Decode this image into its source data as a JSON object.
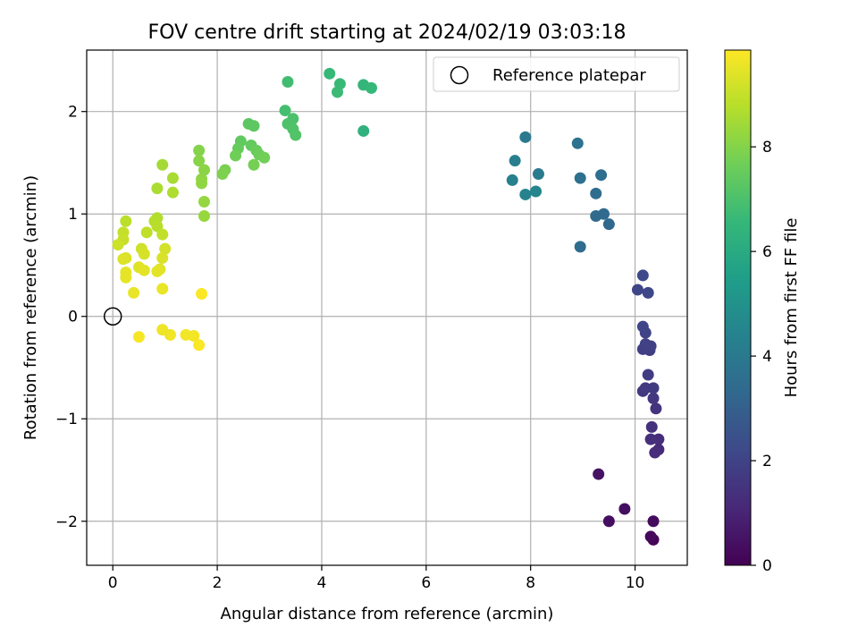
{
  "chart_data": {
    "type": "scatter",
    "title": "FOV centre drift starting at 2024/02/19 03:03:18",
    "xlabel": "Angular distance from reference (arcmin)",
    "ylabel": "Rotation from reference (arcmin)",
    "xlim": [
      -0.5,
      11.0
    ],
    "ylim": [
      -2.43,
      2.6
    ],
    "xticks": [
      0,
      2,
      4,
      6,
      8,
      10
    ],
    "yticks": [
      -2,
      -1,
      0,
      1,
      2
    ],
    "xtick_labels": [
      "0",
      "2",
      "4",
      "6",
      "8",
      "10"
    ],
    "ytick_labels": [
      "−2",
      "−1",
      "0",
      "1",
      "2"
    ],
    "grid": true,
    "legend": {
      "position": "top-right",
      "entries": [
        "Reference platepar"
      ]
    },
    "reference_point": {
      "x": 0,
      "y": 0,
      "label": "Reference platepar"
    },
    "colorbar": {
      "label": "Hours from first FF file",
      "min": 0,
      "max": 9.85,
      "ticks": [
        0,
        2,
        4,
        6,
        8
      ],
      "tick_labels": [
        "0",
        "2",
        "4",
        "6",
        "8"
      ],
      "colormap": [
        "#440154",
        "#482878",
        "#3e4989",
        "#31688e",
        "#26828e",
        "#1f9e89",
        "#35b779",
        "#6ece58",
        "#b5de2b",
        "#fde725"
      ]
    },
    "points": [
      {
        "x": 10.35,
        "y": -2.18,
        "h": 0.1
      },
      {
        "x": 10.3,
        "y": -2.15,
        "h": 0.2
      },
      {
        "x": 10.35,
        "y": -2.0,
        "h": 0.3
      },
      {
        "x": 9.5,
        "y": -2.0,
        "h": 0.35
      },
      {
        "x": 9.8,
        "y": -1.88,
        "h": 0.4
      },
      {
        "x": 9.3,
        "y": -1.54,
        "h": 0.5
      },
      {
        "x": 10.45,
        "y": -1.3,
        "h": 1.2
      },
      {
        "x": 10.38,
        "y": -1.33,
        "h": 1.25
      },
      {
        "x": 10.45,
        "y": -1.2,
        "h": 1.3
      },
      {
        "x": 10.3,
        "y": -1.2,
        "h": 1.35
      },
      {
        "x": 10.32,
        "y": -1.08,
        "h": 1.4
      },
      {
        "x": 10.4,
        "y": -0.9,
        "h": 1.5
      },
      {
        "x": 10.35,
        "y": -0.8,
        "h": 1.55
      },
      {
        "x": 10.15,
        "y": -0.73,
        "h": 1.6
      },
      {
        "x": 10.2,
        "y": -0.7,
        "h": 1.65
      },
      {
        "x": 10.35,
        "y": -0.7,
        "h": 1.7
      },
      {
        "x": 10.25,
        "y": -0.57,
        "h": 1.75
      },
      {
        "x": 10.28,
        "y": -0.33,
        "h": 1.8
      },
      {
        "x": 10.15,
        "y": -0.32,
        "h": 1.85
      },
      {
        "x": 10.3,
        "y": -0.29,
        "h": 1.9
      },
      {
        "x": 10.2,
        "y": -0.27,
        "h": 1.95
      },
      {
        "x": 10.2,
        "y": -0.16,
        "h": 2.0
      },
      {
        "x": 10.15,
        "y": -0.1,
        "h": 2.05
      },
      {
        "x": 10.05,
        "y": 0.26,
        "h": 2.1
      },
      {
        "x": 10.25,
        "y": 0.23,
        "h": 2.15
      },
      {
        "x": 10.15,
        "y": 0.4,
        "h": 2.2
      },
      {
        "x": 9.5,
        "y": 0.9,
        "h": 3.3
      },
      {
        "x": 9.4,
        "y": 1.0,
        "h": 3.35
      },
      {
        "x": 9.25,
        "y": 0.98,
        "h": 3.4
      },
      {
        "x": 8.95,
        "y": 0.68,
        "h": 3.45
      },
      {
        "x": 9.25,
        "y": 1.2,
        "h": 3.5
      },
      {
        "x": 9.35,
        "y": 1.38,
        "h": 3.55
      },
      {
        "x": 8.95,
        "y": 1.35,
        "h": 3.6
      },
      {
        "x": 8.9,
        "y": 1.69,
        "h": 3.7
      },
      {
        "x": 7.9,
        "y": 1.75,
        "h": 4.0
      },
      {
        "x": 8.15,
        "y": 1.39,
        "h": 4.1
      },
      {
        "x": 7.7,
        "y": 1.52,
        "h": 4.2
      },
      {
        "x": 7.65,
        "y": 1.33,
        "h": 4.3
      },
      {
        "x": 7.9,
        "y": 1.19,
        "h": 4.4
      },
      {
        "x": 8.1,
        "y": 1.22,
        "h": 4.5
      },
      {
        "x": 4.8,
        "y": 1.81,
        "h": 6.3
      },
      {
        "x": 4.8,
        "y": 2.26,
        "h": 6.5
      },
      {
        "x": 4.95,
        "y": 2.23,
        "h": 6.55
      },
      {
        "x": 4.15,
        "y": 2.37,
        "h": 6.6
      },
      {
        "x": 4.35,
        "y": 2.27,
        "h": 6.65
      },
      {
        "x": 4.3,
        "y": 2.19,
        "h": 6.7
      },
      {
        "x": 3.35,
        "y": 2.29,
        "h": 6.8
      },
      {
        "x": 3.3,
        "y": 2.01,
        "h": 6.9
      },
      {
        "x": 3.45,
        "y": 1.93,
        "h": 7.0
      },
      {
        "x": 3.35,
        "y": 1.88,
        "h": 7.05
      },
      {
        "x": 3.45,
        "y": 1.83,
        "h": 7.1
      },
      {
        "x": 3.5,
        "y": 1.77,
        "h": 7.15
      },
      {
        "x": 2.6,
        "y": 1.88,
        "h": 7.3
      },
      {
        "x": 2.7,
        "y": 1.86,
        "h": 7.35
      },
      {
        "x": 2.45,
        "y": 1.71,
        "h": 7.4
      },
      {
        "x": 2.65,
        "y": 1.67,
        "h": 7.45
      },
      {
        "x": 2.4,
        "y": 1.64,
        "h": 7.5
      },
      {
        "x": 2.75,
        "y": 1.62,
        "h": 7.55
      },
      {
        "x": 2.8,
        "y": 1.58,
        "h": 7.6
      },
      {
        "x": 2.35,
        "y": 1.57,
        "h": 7.65
      },
      {
        "x": 2.9,
        "y": 1.55,
        "h": 7.7
      },
      {
        "x": 2.7,
        "y": 1.48,
        "h": 7.75
      },
      {
        "x": 2.15,
        "y": 1.43,
        "h": 7.85
      },
      {
        "x": 2.1,
        "y": 1.39,
        "h": 7.9
      },
      {
        "x": 1.65,
        "y": 1.62,
        "h": 8.0
      },
      {
        "x": 1.65,
        "y": 1.52,
        "h": 8.05
      },
      {
        "x": 1.75,
        "y": 1.43,
        "h": 8.1
      },
      {
        "x": 1.7,
        "y": 1.34,
        "h": 8.15
      },
      {
        "x": 1.7,
        "y": 1.3,
        "h": 8.2
      },
      {
        "x": 1.75,
        "y": 1.12,
        "h": 8.25
      },
      {
        "x": 1.75,
        "y": 0.98,
        "h": 8.3
      },
      {
        "x": 0.95,
        "y": 1.48,
        "h": 8.5
      },
      {
        "x": 1.15,
        "y": 1.35,
        "h": 8.55
      },
      {
        "x": 0.85,
        "y": 1.25,
        "h": 8.6
      },
      {
        "x": 1.15,
        "y": 1.21,
        "h": 8.65
      },
      {
        "x": 0.85,
        "y": 0.96,
        "h": 8.7
      },
      {
        "x": 0.8,
        "y": 0.93,
        "h": 8.75
      },
      {
        "x": 0.85,
        "y": 0.88,
        "h": 8.8
      },
      {
        "x": 0.25,
        "y": 0.93,
        "h": 8.85
      },
      {
        "x": 0.65,
        "y": 0.82,
        "h": 8.9
      },
      {
        "x": 0.95,
        "y": 0.8,
        "h": 8.95
      },
      {
        "x": 0.2,
        "y": 0.82,
        "h": 9.0
      },
      {
        "x": 0.2,
        "y": 0.75,
        "h": 9.05
      },
      {
        "x": 0.1,
        "y": 0.7,
        "h": 9.1
      },
      {
        "x": 0.55,
        "y": 0.66,
        "h": 9.15
      },
      {
        "x": 1.0,
        "y": 0.66,
        "h": 9.2
      },
      {
        "x": 0.6,
        "y": 0.61,
        "h": 9.25
      },
      {
        "x": 0.25,
        "y": 0.57,
        "h": 9.3
      },
      {
        "x": 0.95,
        "y": 0.57,
        "h": 9.3
      },
      {
        "x": 0.2,
        "y": 0.56,
        "h": 9.35
      },
      {
        "x": 0.5,
        "y": 0.48,
        "h": 9.4
      },
      {
        "x": 0.9,
        "y": 0.46,
        "h": 9.4
      },
      {
        "x": 0.6,
        "y": 0.45,
        "h": 9.45
      },
      {
        "x": 0.85,
        "y": 0.44,
        "h": 9.45
      },
      {
        "x": 0.25,
        "y": 0.43,
        "h": 9.5
      },
      {
        "x": 0.25,
        "y": 0.38,
        "h": 9.5
      },
      {
        "x": 0.95,
        "y": 0.27,
        "h": 9.55
      },
      {
        "x": 0.4,
        "y": 0.23,
        "h": 9.55
      },
      {
        "x": 1.7,
        "y": 0.22,
        "h": 9.8
      },
      {
        "x": 0.95,
        "y": -0.13,
        "h": 9.6
      },
      {
        "x": 1.1,
        "y": -0.18,
        "h": 9.65
      },
      {
        "x": 1.4,
        "y": -0.18,
        "h": 9.7
      },
      {
        "x": 1.55,
        "y": -0.19,
        "h": 9.7
      },
      {
        "x": 0.5,
        "y": -0.2,
        "h": 9.75
      },
      {
        "x": 1.65,
        "y": -0.28,
        "h": 9.8
      }
    ]
  }
}
